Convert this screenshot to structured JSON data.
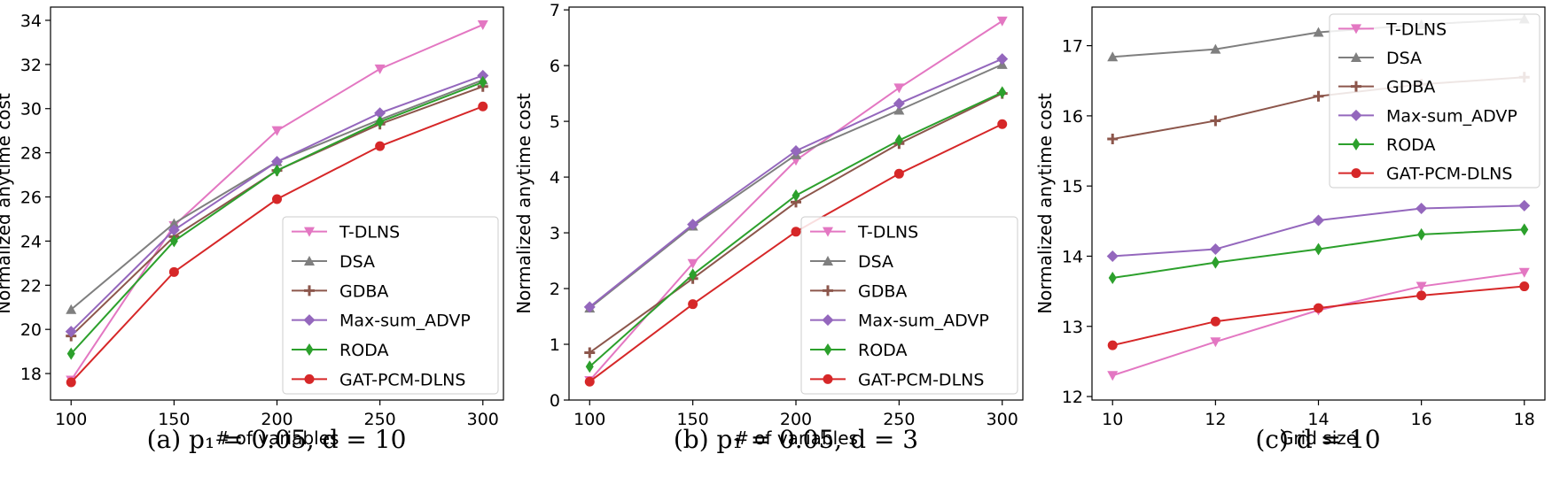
{
  "colors": {
    "T-DLNS": "#e377c2",
    "DSA": "#7f7f7f",
    "GDBA": "#8c564b",
    "Max-sum_ADVP": "#9467bd",
    "RODA": "#2ca02c",
    "GAT-PCM-DLNS": "#d62728"
  },
  "chart_data": [
    {
      "type": "line",
      "caption": "(a) p₁ = 0.05, d = 10",
      "xlabel": "# of variables",
      "ylabel": "Normalized anytime cost",
      "x": [
        100,
        150,
        200,
        250,
        300
      ],
      "xlim": [
        90,
        310
      ],
      "ylim": [
        16.8,
        34.6
      ],
      "xticks": [
        100,
        150,
        200,
        250,
        300
      ],
      "yticks": [
        18,
        20,
        22,
        24,
        26,
        28,
        30,
        32,
        34
      ],
      "legend_position": "lower-right",
      "series": [
        {
          "name": "T-DLNS",
          "marker": "tri-down",
          "values": [
            17.7,
            24.7,
            29.0,
            31.8,
            33.8
          ]
        },
        {
          "name": "DSA",
          "marker": "tri-up",
          "values": [
            20.9,
            24.8,
            27.6,
            29.5,
            31.3
          ]
        },
        {
          "name": "GDBA",
          "marker": "plus",
          "values": [
            19.7,
            24.2,
            27.2,
            29.3,
            31.0
          ]
        },
        {
          "name": "Max-sum_ADVP",
          "marker": "diamond",
          "values": [
            19.9,
            24.5,
            27.6,
            29.8,
            31.5
          ]
        },
        {
          "name": "RODA",
          "marker": "thin-diamond",
          "values": [
            18.9,
            24.0,
            27.2,
            29.4,
            31.2
          ]
        },
        {
          "name": "GAT-PCM-DLNS",
          "marker": "circle",
          "values": [
            17.6,
            22.6,
            25.9,
            28.3,
            30.1
          ]
        }
      ]
    },
    {
      "type": "line",
      "caption": "(b) p₁ = 0.05, d = 3",
      "xlabel": "# of variables",
      "ylabel": "Normalized anytime cost",
      "x": [
        100,
        150,
        200,
        250,
        300
      ],
      "xlim": [
        90,
        310
      ],
      "ylim": [
        0,
        7.05
      ],
      "xticks": [
        100,
        150,
        200,
        250,
        300
      ],
      "yticks": [
        0,
        1,
        2,
        3,
        4,
        5,
        6,
        7
      ],
      "legend_position": "lower-right",
      "series": [
        {
          "name": "T-DLNS",
          "marker": "tri-down",
          "values": [
            0.35,
            2.45,
            4.3,
            5.6,
            6.8
          ]
        },
        {
          "name": "DSA",
          "marker": "tri-up",
          "values": [
            1.65,
            3.12,
            4.4,
            5.2,
            6.02
          ]
        },
        {
          "name": "GDBA",
          "marker": "plus",
          "values": [
            0.85,
            2.18,
            3.55,
            4.6,
            5.5
          ]
        },
        {
          "name": "Max-sum_ADVP",
          "marker": "diamond",
          "values": [
            1.67,
            3.15,
            4.47,
            5.32,
            6.12
          ]
        },
        {
          "name": "RODA",
          "marker": "thin-diamond",
          "values": [
            0.6,
            2.25,
            3.67,
            4.66,
            5.52
          ]
        },
        {
          "name": "GAT-PCM-DLNS",
          "marker": "circle",
          "values": [
            0.33,
            1.72,
            3.02,
            4.06,
            4.95
          ]
        }
      ]
    },
    {
      "type": "line",
      "caption": "(c) d = 10",
      "xlabel": "Grid size",
      "ylabel": "Normalized anytime cost",
      "x": [
        10,
        12,
        14,
        16,
        18
      ],
      "xlim": [
        9.6,
        18.4
      ],
      "ylim": [
        11.95,
        17.55
      ],
      "xticks": [
        10,
        12,
        14,
        16,
        18
      ],
      "yticks": [
        12,
        13,
        14,
        15,
        16,
        17
      ],
      "legend_position": "upper-right",
      "series": [
        {
          "name": "T-DLNS",
          "marker": "tri-down",
          "values": [
            12.3,
            12.78,
            13.23,
            13.57,
            13.77
          ]
        },
        {
          "name": "DSA",
          "marker": "tri-up",
          "values": [
            16.84,
            16.95,
            17.19,
            17.3,
            17.38
          ]
        },
        {
          "name": "GDBA",
          "marker": "plus",
          "values": [
            15.67,
            15.93,
            16.28,
            16.45,
            16.55
          ]
        },
        {
          "name": "Max-sum_ADVP",
          "marker": "diamond",
          "values": [
            14.0,
            14.1,
            14.51,
            14.68,
            14.72
          ]
        },
        {
          "name": "RODA",
          "marker": "thin-diamond",
          "values": [
            13.69,
            13.91,
            14.1,
            14.31,
            14.38
          ]
        },
        {
          "name": "GAT-PCM-DLNS",
          "marker": "circle",
          "values": [
            12.73,
            13.07,
            13.26,
            13.44,
            13.57
          ]
        }
      ]
    }
  ]
}
